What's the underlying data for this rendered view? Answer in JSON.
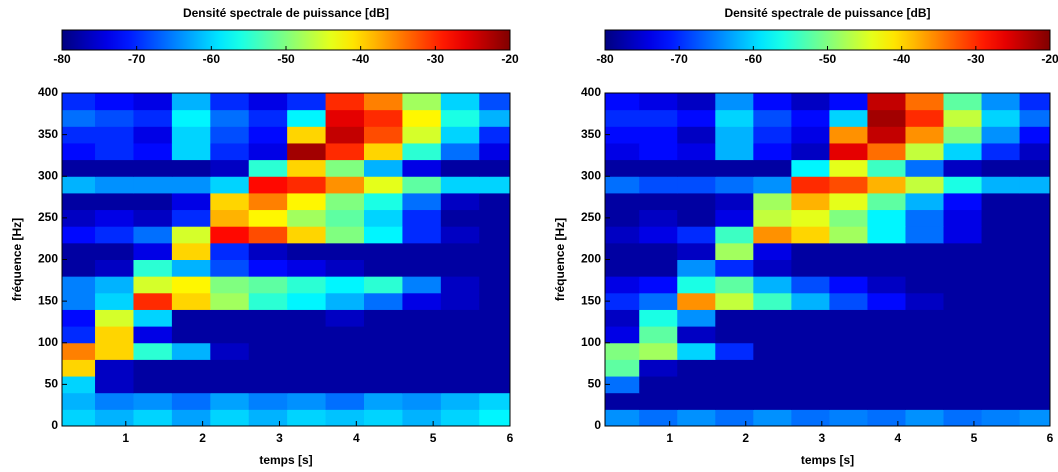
{
  "chart_data": [
    {
      "type": "heatmap",
      "colorbar_label": "Densité spectrale de puissance [dB]",
      "xlabel": "temps [s]",
      "ylabel": "fréquence [Hz]",
      "colormap": "jet",
      "clim": [
        -80,
        -20
      ],
      "cticks": [
        -80,
        -70,
        -60,
        -50,
        -40,
        -30,
        -20
      ],
      "xlim": [
        0.17,
        6
      ],
      "xticks": [
        1,
        2,
        3,
        4,
        5,
        6
      ],
      "ylim": [
        0,
        400
      ],
      "yticks": [
        0,
        50,
        100,
        150,
        200,
        250,
        300,
        350,
        400
      ],
      "x": [
        0.35,
        0.85,
        1.35,
        1.85,
        2.35,
        2.85,
        3.35,
        3.85,
        4.35,
        4.85,
        5.35,
        5.85
      ],
      "y": [
        10,
        30,
        50,
        70,
        90,
        110,
        130,
        150,
        170,
        190,
        210,
        230,
        250,
        270,
        290,
        310,
        330,
        350,
        370,
        390
      ],
      "z": [
        [
          -60,
          -62,
          -60,
          -63,
          -60,
          -62,
          -60,
          -61,
          -60,
          -62,
          -60,
          -58
        ],
        [
          -62,
          -65,
          -64,
          -66,
          -63,
          -65,
          -64,
          -66,
          -63,
          -64,
          -62,
          -60
        ],
        [
          -60,
          -76,
          -78,
          -78,
          -78,
          -78,
          -78,
          -78,
          -78,
          -78,
          -78,
          -78
        ],
        [
          -40,
          -76,
          -78,
          -78,
          -78,
          -78,
          -78,
          -78,
          -78,
          -78,
          -78,
          -78
        ],
        [
          -35,
          -40,
          -55,
          -62,
          -76,
          -78,
          -78,
          -78,
          -78,
          -78,
          -78,
          -78
        ],
        [
          -70,
          -40,
          -74,
          -78,
          -78,
          -78,
          -78,
          -78,
          -78,
          -78,
          -78,
          -78
        ],
        [
          -72,
          -45,
          -60,
          -78,
          -78,
          -78,
          -78,
          -76,
          -78,
          -78,
          -78,
          -78
        ],
        [
          -65,
          -60,
          -30,
          -40,
          -48,
          -55,
          -58,
          -62,
          -66,
          -74,
          -76,
          -78
        ],
        [
          -65,
          -62,
          -45,
          -42,
          -50,
          -52,
          -55,
          -58,
          -55,
          -65,
          -76,
          -78
        ],
        [
          -78,
          -76,
          -55,
          -62,
          -68,
          -72,
          -74,
          -76,
          -78,
          -78,
          -78,
          -78
        ],
        [
          -78,
          -78,
          -74,
          -40,
          -70,
          -76,
          -78,
          -78,
          -78,
          -78,
          -78,
          -78
        ],
        [
          -72,
          -70,
          -66,
          -45,
          -28,
          -32,
          -40,
          -50,
          -58,
          -70,
          -76,
          -78
        ],
        [
          -76,
          -74,
          -76,
          -70,
          -38,
          -42,
          -48,
          -52,
          -60,
          -70,
          -78,
          -78
        ],
        [
          -78,
          -78,
          -78,
          -74,
          -40,
          -35,
          -42,
          -50,
          -56,
          -66,
          -76,
          -78
        ],
        [
          -62,
          -64,
          -64,
          -64,
          -60,
          -28,
          -30,
          -36,
          -44,
          -52,
          -60,
          -60
        ],
        [
          -78,
          -78,
          -78,
          -78,
          -76,
          -55,
          -40,
          -50,
          -62,
          -74,
          -78,
          -78
        ],
        [
          -72,
          -70,
          -72,
          -60,
          -70,
          -74,
          -22,
          -30,
          -40,
          -55,
          -66,
          -74
        ],
        [
          -70,
          -70,
          -74,
          -60,
          -68,
          -72,
          -40,
          -24,
          -32,
          -45,
          -60,
          -70
        ],
        [
          -66,
          -68,
          -70,
          -58,
          -66,
          -70,
          -58,
          -26,
          -30,
          -42,
          -56,
          -62
        ],
        [
          -70,
          -72,
          -74,
          -62,
          -70,
          -74,
          -70,
          -30,
          -35,
          -48,
          -60,
          -68
        ]
      ]
    },
    {
      "type": "heatmap",
      "colorbar_label": "Densité spectrale de puissance [dB]",
      "xlabel": "temps [s]",
      "ylabel": "fréquence [Hz]",
      "colormap": "jet",
      "clim": [
        -80,
        -20
      ],
      "cticks": [
        -80,
        -70,
        -60,
        -50,
        -40,
        -30,
        -20
      ],
      "xlim": [
        0.15,
        6
      ],
      "xticks": [
        1,
        2,
        3,
        4,
        5,
        6
      ],
      "ylim": [
        0,
        400
      ],
      "yticks": [
        0,
        50,
        100,
        150,
        200,
        250,
        300,
        350,
        400
      ],
      "x": [
        0.35,
        0.85,
        1.35,
        1.85,
        2.35,
        2.85,
        3.35,
        3.85,
        4.35,
        4.85,
        5.35,
        5.85
      ],
      "y": [
        10,
        30,
        50,
        70,
        90,
        110,
        130,
        150,
        170,
        190,
        210,
        230,
        250,
        270,
        290,
        310,
        330,
        350,
        370,
        390
      ],
      "z": [
        [
          -64,
          -66,
          -64,
          -66,
          -64,
          -66,
          -65,
          -66,
          -64,
          -66,
          -65,
          -64
        ],
        [
          -78,
          -78,
          -78,
          -78,
          -78,
          -78,
          -78,
          -78,
          -78,
          -78,
          -78,
          -78
        ],
        [
          -66,
          -78,
          -78,
          -78,
          -78,
          -78,
          -78,
          -78,
          -78,
          -78,
          -78,
          -78
        ],
        [
          -52,
          -76,
          -78,
          -78,
          -78,
          -78,
          -78,
          -78,
          -78,
          -78,
          -78,
          -78
        ],
        [
          -50,
          -48,
          -60,
          -70,
          -78,
          -78,
          -78,
          -78,
          -78,
          -78,
          -78,
          -78
        ],
        [
          -74,
          -52,
          -76,
          -78,
          -78,
          -78,
          -78,
          -78,
          -78,
          -78,
          -78,
          -78
        ],
        [
          -76,
          -56,
          -64,
          -78,
          -78,
          -78,
          -78,
          -78,
          -78,
          -78,
          -78,
          -78
        ],
        [
          -70,
          -66,
          -36,
          -46,
          -54,
          -62,
          -68,
          -72,
          -76,
          -78,
          -78,
          -78
        ],
        [
          -74,
          -72,
          -56,
          -52,
          -62,
          -68,
          -72,
          -76,
          -78,
          -78,
          -78,
          -78
        ],
        [
          -78,
          -78,
          -64,
          -70,
          -76,
          -78,
          -78,
          -78,
          -78,
          -78,
          -78,
          -78
        ],
        [
          -78,
          -78,
          -76,
          -48,
          -74,
          -78,
          -78,
          -78,
          -78,
          -78,
          -78,
          -78
        ],
        [
          -76,
          -74,
          -70,
          -54,
          -36,
          -40,
          -48,
          -58,
          -66,
          -74,
          -78,
          -78
        ],
        [
          -78,
          -76,
          -78,
          -74,
          -46,
          -44,
          -50,
          -58,
          -66,
          -74,
          -78,
          -78
        ],
        [
          -78,
          -78,
          -78,
          -76,
          -48,
          -38,
          -44,
          -52,
          -62,
          -72,
          -78,
          -78
        ],
        [
          -66,
          -68,
          -68,
          -66,
          -64,
          -30,
          -32,
          -38,
          -46,
          -56,
          -62,
          -62
        ],
        [
          -78,
          -78,
          -78,
          -78,
          -78,
          -58,
          -44,
          -54,
          -66,
          -76,
          -78,
          -78
        ],
        [
          -74,
          -72,
          -74,
          -62,
          -72,
          -76,
          -26,
          -34,
          -46,
          -60,
          -70,
          -76
        ],
        [
          -72,
          -72,
          -76,
          -62,
          -70,
          -74,
          -36,
          -24,
          -36,
          -50,
          -64,
          -72
        ],
        [
          -70,
          -70,
          -72,
          -60,
          -68,
          -72,
          -60,
          -22,
          -30,
          -46,
          -60,
          -66
        ],
        [
          -72,
          -74,
          -76,
          -64,
          -72,
          -76,
          -72,
          -24,
          -34,
          -52,
          -64,
          -70
        ]
      ]
    }
  ]
}
